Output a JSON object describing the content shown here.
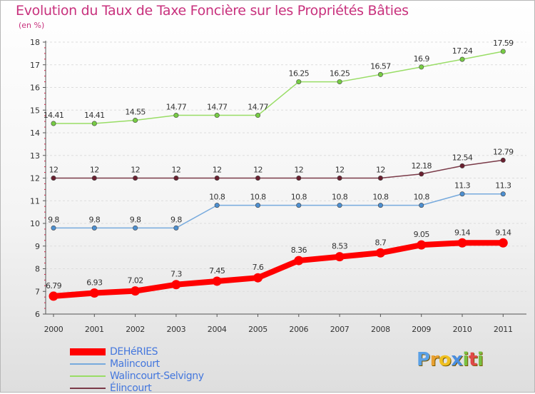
{
  "title": "Evolution du Taux de Taxe Foncière sur les Propriétés Bâties",
  "subtitle": "(en %)",
  "brand": {
    "letters": [
      "P",
      "r",
      "o",
      "x",
      "i",
      "t",
      "i"
    ],
    "colors": [
      "#5aa0e6",
      "#e8a030",
      "#f0c020",
      "#4a8ee0",
      "#78c040",
      "#e04848",
      "#78c040"
    ]
  },
  "chart_data": {
    "type": "line",
    "title": "Evolution du Taux de Taxe Foncière sur les Propriétés Bâties",
    "ylabel": "(en %)",
    "xlabel": "",
    "categories": [
      "2000",
      "2001",
      "2002",
      "2003",
      "2004",
      "2005",
      "2006",
      "2007",
      "2008",
      "2009",
      "2010",
      "2011"
    ],
    "yticks": [
      "6",
      "7",
      "8",
      "9",
      "10",
      "11",
      "12",
      "13",
      "14",
      "15",
      "16",
      "17",
      "18"
    ],
    "ylim": [
      6,
      18
    ],
    "series": [
      {
        "name": "Walincourt-Selvigny",
        "color": "#99dd66",
        "marker": "#77cc44",
        "values": [
          14.41,
          14.41,
          14.55,
          14.77,
          14.77,
          14.77,
          16.25,
          16.25,
          16.57,
          16.9,
          17.24,
          17.59
        ],
        "labels": [
          "14.41",
          "14.41",
          "14.55",
          "14.77",
          "14.77",
          "14.77",
          "16.25",
          "16.25",
          "16.57",
          "16.9",
          "17.24",
          "17.59"
        ]
      },
      {
        "name": "Élincourt",
        "color": "#7a3a48",
        "marker": "#6a2030",
        "values": [
          12,
          12,
          12,
          12,
          12,
          12,
          12,
          12,
          12,
          12.18,
          12.54,
          12.79
        ],
        "labels": [
          "12",
          "12",
          "12",
          "12",
          "12",
          "12",
          "12",
          "12",
          "12",
          "12.18",
          "12.54",
          "12.79"
        ]
      },
      {
        "name": "Malincourt",
        "color": "#77aadd",
        "marker": "#4d8fd0",
        "values": [
          9.8,
          9.8,
          9.8,
          9.8,
          10.8,
          10.8,
          10.8,
          10.8,
          10.8,
          10.8,
          11.3,
          11.3
        ],
        "labels": [
          "9.8",
          "9.8",
          "9.8",
          "9.8",
          "10.8",
          "10.8",
          "10.8",
          "10.8",
          "10.8",
          "10.8",
          "11.3",
          "11.3"
        ]
      },
      {
        "name": "DEHéRIES",
        "color": "#ff0000",
        "marker": "#ff0000",
        "values": [
          6.79,
          6.93,
          7.02,
          7.3,
          7.45,
          7.6,
          8.36,
          8.53,
          8.7,
          9.05,
          9.14,
          9.14
        ],
        "labels": [
          "6.79",
          "6.93",
          "7.02",
          "7.3",
          "7.45",
          "7.6",
          "8.36",
          "8.53",
          "8.7",
          "9.05",
          "9.14",
          "9.14"
        ]
      }
    ],
    "legend": [
      {
        "name": "DEHéRIES",
        "color": "#ff0000"
      },
      {
        "name": "Malincourt",
        "color": "#77aadd"
      },
      {
        "name": "Walincourt-Selvigny",
        "color": "#99dd66"
      },
      {
        "name": "Élincourt",
        "color": "#7a3a48"
      }
    ],
    "legend_position": "bottom-left",
    "grid": true
  }
}
